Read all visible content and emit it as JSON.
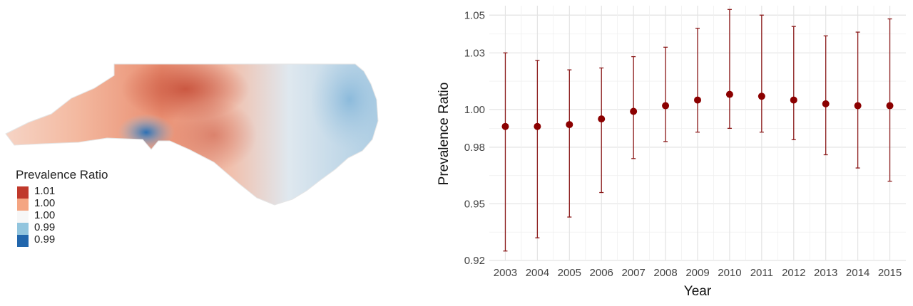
{
  "map": {
    "legend_title": "Prevalence Ratio",
    "legend_labels": [
      "1.01",
      "1.00",
      "1.00",
      "0.99",
      "0.99"
    ],
    "legend_colors": [
      "#c0392b",
      "#f4a582",
      "#f7f7f7",
      "#92c5de",
      "#2166ac"
    ]
  },
  "chart_data": {
    "type": "scatter",
    "xlabel": "Year",
    "ylabel": "Prevalence Ratio",
    "x": [
      "2003",
      "2004",
      "2005",
      "2006",
      "2007",
      "2008",
      "2009",
      "2010",
      "2011",
      "2012",
      "2013",
      "2014",
      "2015"
    ],
    "y": [
      0.991,
      0.991,
      0.992,
      0.995,
      0.999,
      1.002,
      1.005,
      1.008,
      1.007,
      1.005,
      1.003,
      1.002,
      1.002
    ],
    "lower": [
      0.925,
      0.932,
      0.943,
      0.956,
      0.974,
      0.983,
      0.988,
      0.99,
      0.988,
      0.984,
      0.976,
      0.969,
      0.962
    ],
    "upper": [
      1.03,
      1.026,
      1.021,
      1.022,
      1.028,
      1.033,
      1.043,
      1.053,
      1.05,
      1.044,
      1.039,
      1.041,
      1.048
    ],
    "ylim": [
      0.92,
      1.055
    ],
    "yticks": [
      0.92,
      0.95,
      0.98,
      1.0,
      1.03,
      1.05
    ],
    "ytick_labels": [
      "0.92",
      "0.95",
      "0.98",
      "1.00",
      "1.03",
      "1.05"
    ],
    "grid": true,
    "point_color": "#8b0000",
    "error_color": "#8b1a1a"
  }
}
